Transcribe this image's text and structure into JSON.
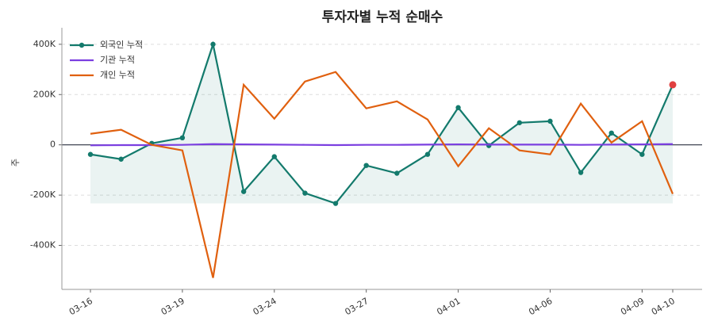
{
  "chart_data": {
    "type": "line",
    "title": "투자자별 누적 순매수",
    "y_label": "주",
    "categories": [
      "03-16",
      null,
      null,
      "03-19",
      null,
      null,
      "03-24",
      null,
      null,
      "03-27",
      null,
      null,
      "04-01",
      null,
      null,
      "04-06",
      null,
      null,
      "04-09",
      "04-10"
    ],
    "series": [
      {
        "name": "외국인 누적",
        "color": "#137a6c",
        "markers": true,
        "fill": true,
        "values": [
          -38000,
          -57000,
          6000,
          28000,
          400000,
          -186000,
          -47000,
          -192000,
          -233000,
          -82000,
          -113000,
          -38000,
          148000,
          -3000,
          88000,
          94000,
          -110000,
          47000,
          -38000,
          239000
        ]
      },
      {
        "name": "기관 누적",
        "color": "#7b3fe0",
        "values": [
          -2000,
          -1000,
          -1000,
          0,
          3000,
          2000,
          1000,
          0,
          -1000,
          0,
          0,
          1000,
          2000,
          1000,
          1000,
          1000,
          0,
          1000,
          2000,
          3000
        ]
      },
      {
        "name": "개인 누적",
        "color": "#e0600f",
        "values": [
          44000,
          60000,
          0,
          -22000,
          -529000,
          239000,
          104000,
          252000,
          290000,
          145000,
          173000,
          101000,
          -85000,
          66000,
          -22000,
          -38000,
          164000,
          9000,
          94000,
          -195000
        ]
      }
    ],
    "highlight_color": "#e04040",
    "ylim": [
      -575000,
      450000
    ],
    "yticks": [
      {
        "value": -400000,
        "label": "-400K"
      },
      {
        "value": -200000,
        "label": "-200K"
      },
      0,
      {
        "value": 200000,
        "label": "200K"
      },
      {
        "value": 400000,
        "label": "400K"
      }
    ],
    "grid": true,
    "legend": "upper-left"
  }
}
